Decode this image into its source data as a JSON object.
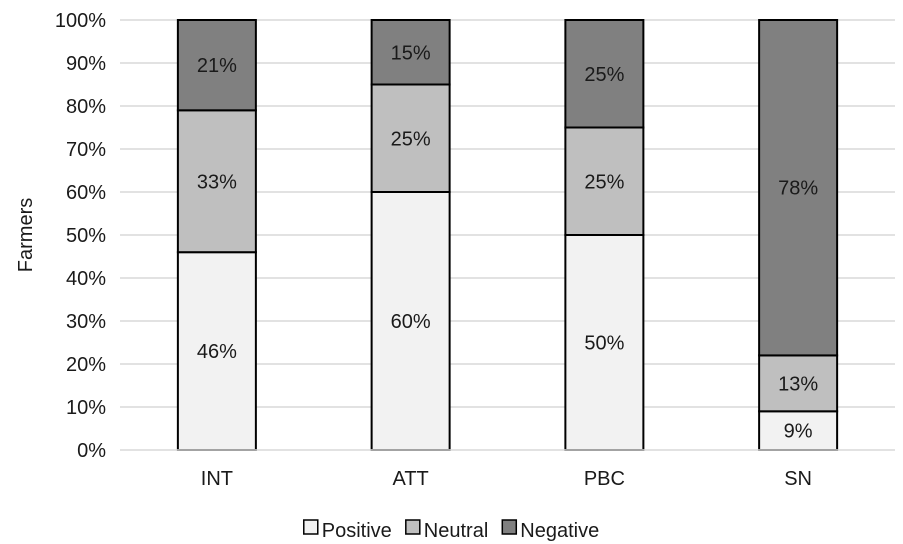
{
  "chart_data": {
    "type": "bar",
    "stacked": true,
    "categories": [
      "INT",
      "ATT",
      "PBC",
      "SN"
    ],
    "series": [
      {
        "name": "Positive",
        "values": [
          46,
          60,
          50,
          9
        ],
        "labels": [
          "46%",
          "60%",
          "50%",
          "9%"
        ],
        "color": "#f2f2f2"
      },
      {
        "name": "Neutral",
        "values": [
          33,
          25,
          25,
          13
        ],
        "labels": [
          "33%",
          "25%",
          "25%",
          "13%"
        ],
        "color": "#bfbfbf"
      },
      {
        "name": "Negative",
        "values": [
          21,
          15,
          25,
          78
        ],
        "labels": [
          "21%",
          "15%",
          "25%",
          "78%"
        ],
        "color": "#808080"
      }
    ],
    "ylabel": "Farmers",
    "ylim": [
      0,
      100
    ],
    "yticks": [
      "0%",
      "10%",
      "20%",
      "30%",
      "40%",
      "50%",
      "60%",
      "70%",
      "80%",
      "90%",
      "100%"
    ],
    "grid": true,
    "legend_position": "bottom"
  }
}
